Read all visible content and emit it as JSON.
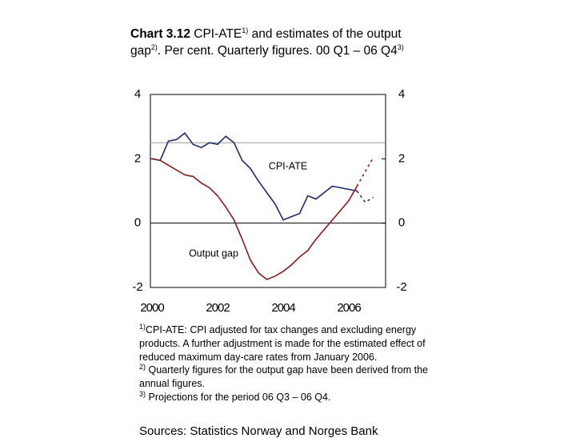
{
  "chart_data": {
    "type": "line",
    "title": [
      "Chart 3.12",
      " CPI-ATE",
      "1)",
      " and estimates of the output gap",
      "2)",
      ". Per cent. Quarterly figures. 00 Q1 – 06 Q4",
      "3)"
    ],
    "categories": [
      "2000",
      null,
      null,
      null,
      null,
      null,
      null,
      null,
      "2002",
      null,
      null,
      null,
      null,
      null,
      null,
      null,
      "2004",
      null,
      null,
      null,
      null,
      null,
      null,
      null,
      "2006",
      null,
      null,
      null
    ],
    "series": [
      {
        "name": "CPI-ATE",
        "color": "#1f2a6e",
        "values": [
          2.0,
          1.95,
          2.55,
          2.6,
          2.8,
          2.45,
          2.35,
          2.5,
          2.45,
          2.7,
          2.5,
          1.95,
          1.7,
          1.3,
          0.95,
          0.6,
          0.1,
          0.2,
          0.3,
          0.85,
          0.75,
          0.95,
          1.15,
          1.1,
          1.05,
          1.0,
          0.65,
          0.8
        ]
      },
      {
        "name": "Output gap",
        "color": "#8b1a1a",
        "values": [
          2.0,
          1.95,
          1.8,
          1.65,
          1.5,
          1.45,
          1.25,
          1.1,
          0.85,
          0.5,
          0.1,
          -0.5,
          -1.15,
          -1.55,
          -1.75,
          -1.65,
          -1.5,
          -1.3,
          -1.05,
          -0.85,
          -0.5,
          -0.2,
          0.1,
          0.4,
          0.7,
          1.15,
          1.6,
          2.05
        ]
      }
    ],
    "projection_from": 26,
    "target_line": 2.5,
    "ylim": [
      -2,
      4
    ],
    "yticks": [
      -2,
      0,
      2,
      4
    ],
    "y2lim": [
      -2,
      4
    ],
    "y2ticks": [
      -2,
      0,
      2,
      4
    ],
    "notes": [
      [
        "1)",
        "CPI-ATE: CPI adjusted for tax changes and excluding energy products. A further adjustment is made for the estimated effect of reduced maximum day-care rates from January 2006."
      ],
      [
        "2)",
        " Quarterly figures for the output gap have been derived from the annual figures."
      ],
      [
        "3)",
        " Projections for the period 06 Q3 – 06 Q4."
      ]
    ],
    "source": "Sources: Statistics Norway and Norges Bank"
  }
}
